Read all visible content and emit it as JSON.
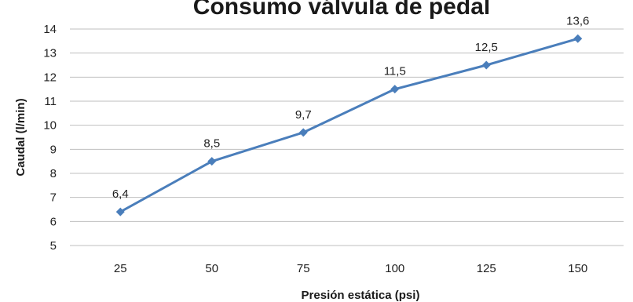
{
  "chart_data": {
    "type": "line",
    "title": "Consumo válvula de pedal",
    "xlabel": "Presión estática (psi)",
    "ylabel": "Caudal (l/min)",
    "categories": [
      "25",
      "50",
      "75",
      "100",
      "125",
      "150"
    ],
    "series": [
      {
        "values": [
          6.4,
          8.5,
          9.7,
          11.5,
          12.5,
          13.6
        ],
        "labels": [
          "6,4",
          "8,5",
          "9,7",
          "11,5",
          "12,5",
          "13,6"
        ],
        "color": "#4a7ebb",
        "marker": "diamond"
      }
    ],
    "ylim": [
      5,
      14
    ],
    "yticks": [
      "5",
      "6",
      "7",
      "8",
      "9",
      "10",
      "11",
      "12",
      "13",
      "14"
    ],
    "grid": true,
    "gridColor": "#bfbfbf",
    "legend": "none"
  }
}
